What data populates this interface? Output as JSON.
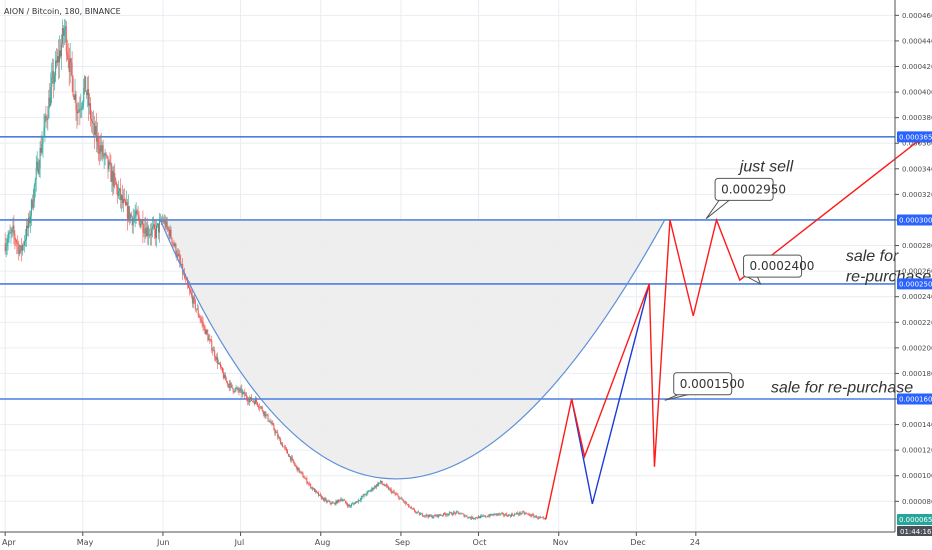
{
  "header": {
    "symbol": "AION / Bitcoin, 180, BINANCE"
  },
  "chart_data": {
    "type": "candlestick",
    "yaxis": {
      "ticks": [
        "0.0000800",
        "0.0001000",
        "0.0001200",
        "0.0001400",
        "0.0001600",
        "0.0001800",
        "0.0002000",
        "0.0002200",
        "0.0002400",
        "0.0002600",
        "0.0002800",
        "0.0003000",
        "0.0003200",
        "0.0003400",
        "0.0003600",
        "0.0003800",
        "0.0004000",
        "0.0004200",
        "0.0004400",
        "0.0004600"
      ],
      "tick_values": [
        8e-05,
        0.0001,
        0.00012,
        0.00014,
        0.00016,
        0.00018,
        0.0002,
        0.00022,
        0.00024,
        0.00026,
        0.00028,
        0.0003,
        0.00032,
        0.00034,
        0.00036,
        0.00038,
        0.0004,
        0.00042,
        0.00044,
        0.00046
      ],
      "ylim": [
        5.6e-05,
        0.000472
      ]
    },
    "xaxis": {
      "labels": [
        "Apr",
        "May",
        "Jun",
        "Jul",
        "Aug",
        "Sep",
        "Oct",
        "Nov",
        "Dec",
        "24"
      ],
      "label_day": [
        0,
        30,
        61,
        91,
        122,
        153,
        183,
        214,
        244,
        267
      ],
      "xlim": [
        -2,
        344
      ]
    },
    "price_series": {
      "anchors": [
        [
          0,
          0.000282
        ],
        [
          3,
          0.00029
        ],
        [
          6,
          0.000275
        ],
        [
          9,
          0.000296
        ],
        [
          12,
          0.000335
        ],
        [
          15,
          0.00037
        ],
        [
          18,
          0.000405
        ],
        [
          21,
          0.00043
        ],
        [
          23,
          0.00045
        ],
        [
          25,
          0.00042
        ],
        [
          28,
          0.000385
        ],
        [
          31,
          0.000405
        ],
        [
          34,
          0.00037
        ],
        [
          37,
          0.000355
        ],
        [
          40,
          0.00034
        ],
        [
          43,
          0.000325
        ],
        [
          46,
          0.00031
        ],
        [
          49,
          0.000302
        ],
        [
          52,
          0.0003
        ],
        [
          55,
          0.000292
        ],
        [
          58,
          0.00029
        ],
        [
          61,
          0.0003
        ],
        [
          64,
          0.000288
        ],
        [
          67,
          0.00027
        ],
        [
          70,
          0.00025
        ],
        [
          73,
          0.000235
        ],
        [
          76,
          0.00022
        ],
        [
          79,
          0.000205
        ],
        [
          82,
          0.00019
        ],
        [
          85,
          0.000175
        ],
        [
          88,
          0.000168
        ],
        [
          91,
          0.000166
        ],
        [
          94,
          0.00016
        ],
        [
          97,
          0.000158
        ],
        [
          100,
          0.00015
        ],
        [
          103,
          0.00014
        ],
        [
          106,
          0.000128
        ],
        [
          109,
          0.000118
        ],
        [
          112,
          0.000108
        ],
        [
          115,
          0.0001
        ],
        [
          118,
          9.2e-05
        ],
        [
          121,
          8.5e-05
        ],
        [
          124,
          8e-05
        ],
        [
          127,
          7.8e-05
        ],
        [
          130,
          8.2e-05
        ],
        [
          133,
          7.6e-05
        ],
        [
          136,
          8e-05
        ],
        [
          139,
          8.5e-05
        ],
        [
          142,
          9e-05
        ],
        [
          145,
          9.5e-05
        ],
        [
          148,
          9e-05
        ],
        [
          151,
          8.5e-05
        ],
        [
          154,
          8e-05
        ],
        [
          157,
          7.4e-05
        ],
        [
          160,
          7e-05
        ],
        [
          165,
          6.8e-05
        ],
        [
          170,
          7e-05
        ],
        [
          175,
          7.1e-05
        ],
        [
          180,
          6.7e-05
        ],
        [
          185,
          6.8e-05
        ],
        [
          190,
          7e-05
        ],
        [
          195,
          6.9e-05
        ],
        [
          200,
          7.1e-05
        ],
        [
          205,
          6.8e-05
        ],
        [
          209,
          6.54e-05
        ]
      ],
      "last_price": "0.0000654",
      "countdown": "01:44:16"
    },
    "horizontal_levels": [
      {
        "value": 0.000365,
        "label": "0.0003650"
      },
      {
        "value": 0.0003,
        "label": "0.0003000"
      },
      {
        "value": 0.00025,
        "label": "0.0002500"
      },
      {
        "value": 0.00016,
        "label": "0.0001600"
      }
    ],
    "rim_line": {
      "value": 0.0003,
      "x_start": 60,
      "x_end": 255
    },
    "cup_arc": {
      "x_start": 60,
      "y_start": 0.0003,
      "x_bottom": 151,
      "y_bottom": 9.75e-05,
      "x_end": 255,
      "y_end": 0.0003,
      "fill_between_x": [
        60,
        255
      ]
    },
    "projection_red": [
      [
        209,
        6.6e-05
      ],
      [
        219,
        0.00016
      ],
      [
        224,
        0.000115
      ],
      [
        249,
        0.00025
      ],
      [
        251,
        0.000107
      ],
      [
        257,
        0.0003
      ],
      [
        266,
        0.000225
      ],
      [
        275,
        0.0003
      ],
      [
        284,
        0.000253
      ],
      [
        355,
        0.000365
      ]
    ],
    "projection_blue": [
      [
        219,
        0.00016
      ],
      [
        227,
        7.8e-05
      ],
      [
        249,
        0.00025
      ]
    ],
    "annotations": [
      {
        "text": "0.0002950",
        "kind": "callout",
        "x": 276,
        "y": 0.00032,
        "anchor_x": 271,
        "anchor_y": 0.000301
      },
      {
        "text": "0.0002400",
        "kind": "callout",
        "x": 287,
        "y": 0.00026,
        "anchor_x": 292,
        "anchor_y": 0.00025
      },
      {
        "text": "0.0001500",
        "kind": "callout",
        "x": 260,
        "y": 0.000168,
        "anchor_x": 255,
        "anchor_y": 0.000159
      },
      {
        "text": "just sell",
        "kind": "note",
        "x": 284,
        "y": 0.000338
      },
      {
        "text": "sale for",
        "kind": "note",
        "x": 325,
        "y": 0.000268
      },
      {
        "text": "re-purchase",
        "kind": "note",
        "x": 325,
        "y": 0.000252
      },
      {
        "text": "sale for re-purchase",
        "kind": "note",
        "x": 296,
        "y": 0.000165
      }
    ]
  },
  "colors": {
    "up": "#26a69a",
    "down": "#ef5350",
    "level": "#2962ff",
    "levelLine": "#4a7fe0",
    "arc": "#5b8fd6",
    "fill": "#ececec",
    "red": "#ff1a1a",
    "blue": "#1b3bd6",
    "grid": "#e9edf2",
    "axis": "#505050"
  }
}
